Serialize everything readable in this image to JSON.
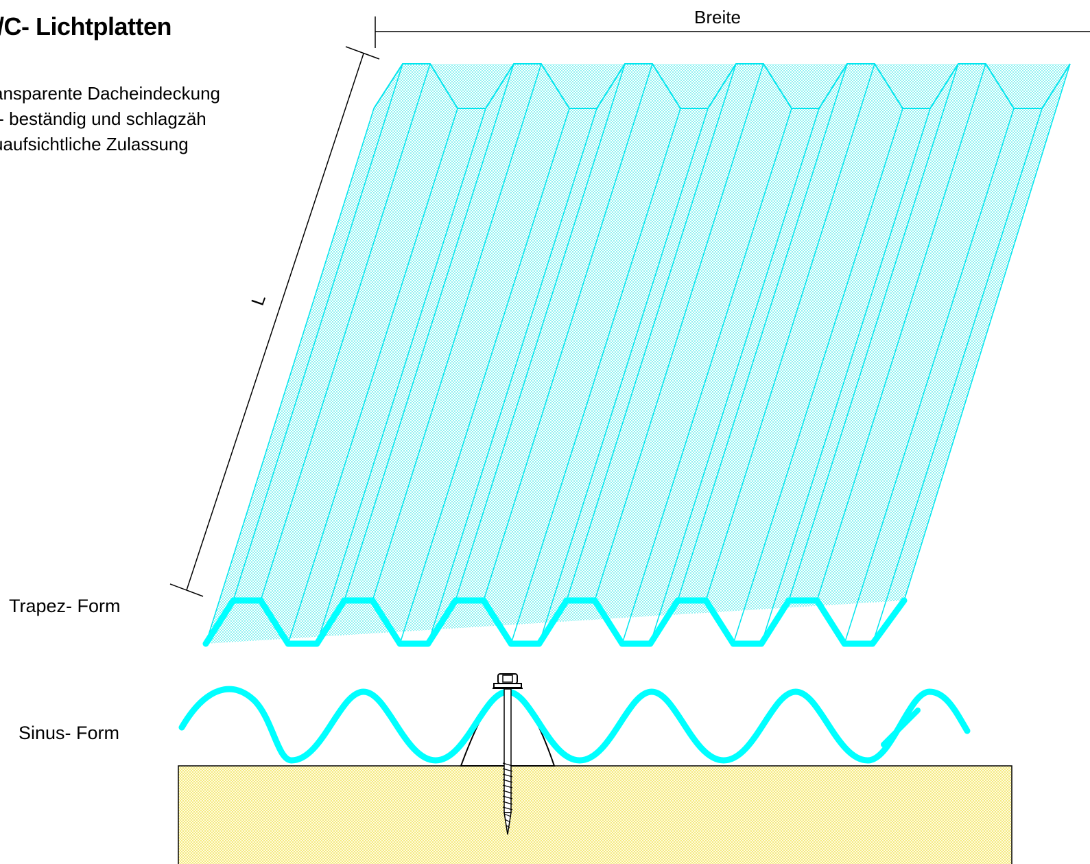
{
  "title": "/C- Lichtplatten",
  "features": [
    "ansparente Dacheindeckung",
    "/- beständig und schlagzäh",
    "uaufsichtliche Zulassung"
  ],
  "dimensions": {
    "width_label": "Breite",
    "length_label": "L"
  },
  "profiles": {
    "trapezoid_label": "Trapez- Form",
    "sinus_label": "Sinus- Form"
  },
  "colors": {
    "sheet": "#00ffff",
    "sheet_fill": "#c4f6f6",
    "support": "#fdf6b0",
    "line": "#000000"
  }
}
